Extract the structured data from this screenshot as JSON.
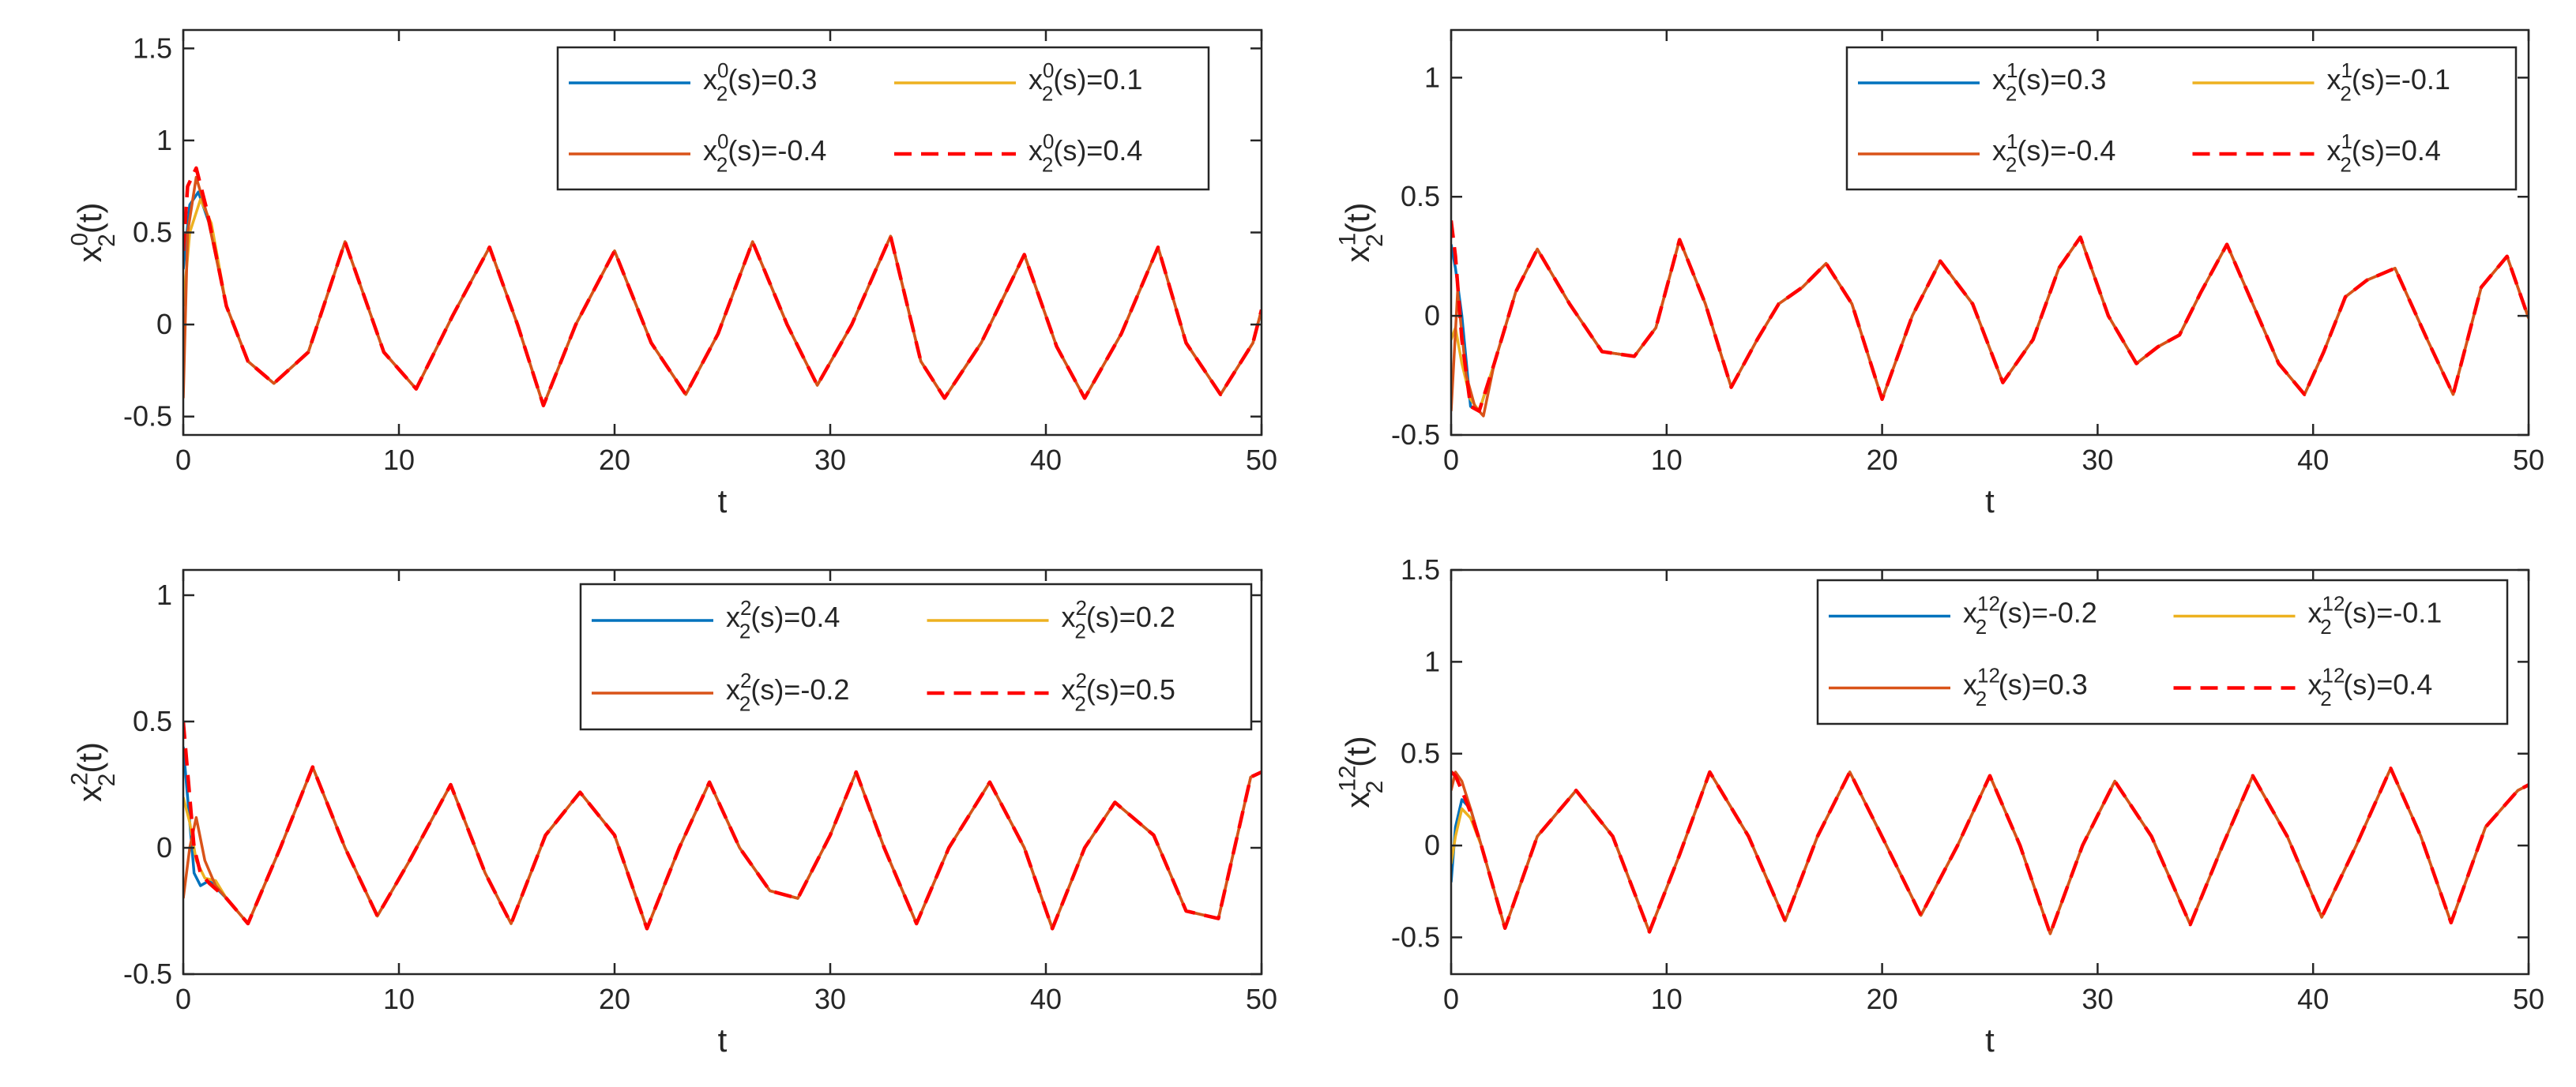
{
  "chart_data": [
    {
      "type": "line",
      "xlabel": "t",
      "ylabel": {
        "base": "x",
        "sub": "2",
        "sup": "0",
        "tail": "(t)"
      },
      "xlim": [
        0,
        50
      ],
      "ylim": [
        -0.6,
        1.6
      ],
      "xticks": [
        {
          "v": 0,
          "label": "0"
        },
        {
          "v": 10,
          "label": "10"
        },
        {
          "v": 20,
          "label": "20"
        },
        {
          "v": 30,
          "label": "30"
        },
        {
          "v": 40,
          "label": "40"
        },
        {
          "v": 50,
          "label": "50"
        }
      ],
      "yticks": [
        {
          "v": -0.5,
          "label": "-0.5"
        },
        {
          "v": 0,
          "label": "0"
        },
        {
          "v": 0.5,
          "label": "0.5"
        },
        {
          "v": 1,
          "label": "1"
        },
        {
          "v": 1.5,
          "label": "1.5"
        }
      ],
      "grid": false,
      "legend_position": "top-right",
      "legend": [
        {
          "base": "x",
          "sub": "2",
          "sup": "0",
          "tail": "(s)=0.3",
          "color": "#0072BD",
          "dash": false
        },
        {
          "base": "x",
          "sub": "2",
          "sup": "0",
          "tail": "(s)=0.1",
          "color": "#EDB120",
          "dash": false
        },
        {
          "base": "x",
          "sub": "2",
          "sup": "0",
          "tail": "(s)=-0.4",
          "color": "#D95319",
          "dash": false
        },
        {
          "base": "x",
          "sub": "2",
          "sup": "0",
          "tail": "(s)=0.4",
          "color": "#FF0000",
          "dash": true
        }
      ],
      "series": [
        {
          "x": [
            0,
            0.3,
            0.7,
            1.2,
            2,
            3
          ],
          "y": [
            0.3,
            0.65,
            0.72,
            0.55,
            0.1,
            -0.2
          ]
        },
        {
          "x": [
            0,
            0.3,
            0.8,
            1.3,
            2,
            3
          ],
          "y": [
            0.1,
            0.5,
            0.68,
            0.55,
            0.1,
            -0.2
          ]
        },
        {
          "x": [
            0,
            0.2,
            0.6,
            1.1,
            2,
            3
          ],
          "y": [
            -0.4,
            0.5,
            0.8,
            0.6,
            0.1,
            -0.2
          ]
        },
        {
          "x": [
            0,
            0.2,
            0.6,
            1.1,
            2,
            3
          ],
          "y": [
            0.4,
            0.75,
            0.85,
            0.62,
            0.1,
            -0.2
          ]
        }
      ],
      "common": {
        "x": [
          3,
          4.2,
          5.8,
          7.5,
          9.3,
          10.8,
          12.5,
          14.2,
          15.5,
          16.7,
          18.2,
          20,
          21.7,
          23.3,
          24.8,
          26.4,
          28,
          29.4,
          31,
          32.8,
          34.2,
          35.3,
          37,
          39,
          40.5,
          41.8,
          43.5,
          45.2,
          46.5,
          48.1,
          49.6,
          50
        ],
        "y": [
          -0.2,
          -0.32,
          -0.15,
          0.45,
          -0.15,
          -0.35,
          0.05,
          0.42,
          0.0,
          -0.44,
          0.0,
          0.4,
          -0.1,
          -0.38,
          -0.05,
          0.45,
          0.0,
          -0.33,
          0.0,
          0.48,
          -0.2,
          -0.4,
          -0.1,
          0.38,
          -0.12,
          -0.4,
          -0.05,
          0.42,
          -0.1,
          -0.38,
          -0.1,
          0.08
        ]
      }
    },
    {
      "type": "line",
      "xlabel": "t",
      "ylabel": {
        "base": "x",
        "sub": "2",
        "sup": "1",
        "tail": "(t)"
      },
      "xlim": [
        0,
        50
      ],
      "ylim": [
        -0.5,
        1.2
      ],
      "xticks": [
        {
          "v": 0,
          "label": "0"
        },
        {
          "v": 10,
          "label": "10"
        },
        {
          "v": 20,
          "label": "20"
        },
        {
          "v": 30,
          "label": "30"
        },
        {
          "v": 40,
          "label": "40"
        },
        {
          "v": 50,
          "label": "50"
        }
      ],
      "yticks": [
        {
          "v": -0.5,
          "label": "-0.5"
        },
        {
          "v": 0,
          "label": "0"
        },
        {
          "v": 0.5,
          "label": "0.5"
        },
        {
          "v": 1,
          "label": "1"
        }
      ],
      "grid": false,
      "legend_position": "top-right",
      "legend": [
        {
          "base": "x",
          "sub": "2",
          "sup": "1",
          "tail": "(s)=0.3",
          "color": "#0072BD",
          "dash": false
        },
        {
          "base": "x",
          "sub": "2",
          "sup": "1",
          "tail": "(s)=-0.1",
          "color": "#EDB120",
          "dash": false
        },
        {
          "base": "x",
          "sub": "2",
          "sup": "1",
          "tail": "(s)=-0.4",
          "color": "#D95319",
          "dash": false
        },
        {
          "base": "x",
          "sub": "2",
          "sup": "1",
          "tail": "(s)=0.4",
          "color": "#FF0000",
          "dash": true
        }
      ],
      "series": [
        {
          "x": [
            0,
            0.2,
            0.5,
            0.9,
            1.3,
            2,
            3
          ],
          "y": [
            0.3,
            0.2,
            0.0,
            -0.38,
            -0.4,
            -0.2,
            0.1
          ]
        },
        {
          "x": [
            0,
            0.2,
            0.5,
            0.9,
            1.3,
            2,
            3
          ],
          "y": [
            -0.1,
            -0.05,
            -0.2,
            -0.35,
            -0.4,
            -0.2,
            0.1
          ]
        },
        {
          "x": [
            0,
            0.3,
            0.7,
            1.1,
            1.5,
            2,
            3
          ],
          "y": [
            -0.4,
            0.1,
            -0.25,
            -0.38,
            -0.42,
            -0.2,
            0.1
          ]
        },
        {
          "x": [
            0,
            0.2,
            0.5,
            0.9,
            1.3,
            2,
            3
          ],
          "y": [
            0.4,
            0.25,
            -0.1,
            -0.38,
            -0.4,
            -0.2,
            0.1
          ]
        }
      ],
      "common": {
        "x": [
          3,
          4,
          5.5,
          7,
          8.5,
          9.5,
          10.6,
          11.8,
          13,
          14.2,
          15.2,
          16.3,
          17.4,
          18.6,
          20,
          21.4,
          22.7,
          24.2,
          25.6,
          27,
          28.2,
          29.2,
          30.5,
          31.8,
          32.8,
          33.8,
          34.8,
          36,
          37.2,
          38.4,
          39.6,
          40.5,
          41.5,
          42.5,
          43.8,
          45.3,
          46.5,
          47.8,
          49,
          50
        ],
        "y": [
          0.1,
          0.28,
          0.05,
          -0.15,
          -0.17,
          -0.05,
          0.32,
          0.05,
          -0.3,
          -0.1,
          0.05,
          0.12,
          0.22,
          0.05,
          -0.35,
          0.0,
          0.23,
          0.05,
          -0.28,
          -0.1,
          0.2,
          0.33,
          0.0,
          -0.2,
          -0.13,
          -0.08,
          0.1,
          0.3,
          0.05,
          -0.2,
          -0.33,
          -0.15,
          0.08,
          0.15,
          0.2,
          -0.1,
          -0.33,
          0.12,
          0.25,
          -0.01
        ]
      }
    },
    {
      "type": "line",
      "xlabel": "t",
      "ylabel": {
        "base": "x",
        "sub": "2",
        "sup": "2",
        "tail": "(t)"
      },
      "xlim": [
        0,
        50
      ],
      "ylim": [
        -0.5,
        1.1
      ],
      "xticks": [
        {
          "v": 0,
          "label": "0"
        },
        {
          "v": 10,
          "label": "10"
        },
        {
          "v": 20,
          "label": "20"
        },
        {
          "v": 30,
          "label": "30"
        },
        {
          "v": 40,
          "label": "40"
        },
        {
          "v": 50,
          "label": "50"
        }
      ],
      "yticks": [
        {
          "v": -0.5,
          "label": "-0.5"
        },
        {
          "v": 0,
          "label": "0"
        },
        {
          "v": 0.5,
          "label": "0.5"
        },
        {
          "v": 1,
          "label": "1"
        }
      ],
      "grid": false,
      "legend_position": "top-right",
      "legend": [
        {
          "base": "x",
          "sub": "2",
          "sup": "2",
          "tail": "(s)=0.4",
          "color": "#0072BD",
          "dash": false
        },
        {
          "base": "x",
          "sub": "2",
          "sup": "2",
          "tail": "(s)=0.2",
          "color": "#EDB120",
          "dash": false
        },
        {
          "base": "x",
          "sub": "2",
          "sup": "2",
          "tail": "(s)=-0.2",
          "color": "#D95319",
          "dash": false
        },
        {
          "base": "x",
          "sub": "2",
          "sup": "2",
          "tail": "(s)=0.5",
          "color": "#FF0000",
          "dash": true
        }
      ],
      "series": [
        {
          "x": [
            0,
            0.2,
            0.5,
            0.8,
            1.2,
            2,
            3
          ],
          "y": [
            0.4,
            0.2,
            -0.1,
            -0.15,
            -0.13,
            -0.2,
            -0.3
          ]
        },
        {
          "x": [
            0,
            0.3,
            0.6,
            1,
            1.5,
            2,
            3
          ],
          "y": [
            0.2,
            0.1,
            -0.05,
            -0.12,
            -0.13,
            -0.2,
            -0.3
          ]
        },
        {
          "x": [
            0,
            0.3,
            0.6,
            1,
            1.5,
            2,
            3
          ],
          "y": [
            -0.2,
            0.0,
            0.12,
            -0.05,
            -0.15,
            -0.2,
            -0.3
          ]
        },
        {
          "x": [
            0,
            0.2,
            0.5,
            0.8,
            1.2,
            2,
            3
          ],
          "y": [
            0.5,
            0.3,
            0.0,
            -0.1,
            -0.14,
            -0.2,
            -0.3
          ]
        }
      ],
      "common": {
        "x": [
          3,
          4.5,
          6,
          7.5,
          9,
          10.5,
          12.4,
          14,
          15.2,
          16.8,
          18.4,
          20,
          21.5,
          23,
          24.4,
          25.8,
          27.2,
          28.5,
          30,
          31.2,
          32.5,
          34,
          35.5,
          37.4,
          39,
          40.3,
          41.8,
          43.2,
          45,
          46.5,
          48,
          49.5,
          50
        ],
        "y": [
          -0.3,
          0.0,
          0.32,
          0.0,
          -0.27,
          -0.05,
          0.25,
          -0.1,
          -0.3,
          0.05,
          0.22,
          0.05,
          -0.32,
          0.0,
          0.26,
          0.0,
          -0.17,
          -0.2,
          0.05,
          0.3,
          0.0,
          -0.3,
          0.0,
          0.26,
          0.0,
          -0.32,
          0.0,
          0.18,
          0.05,
          -0.25,
          -0.28,
          0.28,
          0.3
        ]
      }
    },
    {
      "type": "line",
      "xlabel": "t",
      "ylabel": {
        "base": "x",
        "sub": "2",
        "sup": "12",
        "tail": "(t)"
      },
      "xlim": [
        0,
        50
      ],
      "ylim": [
        -0.7,
        1.5
      ],
      "xticks": [
        {
          "v": 0,
          "label": "0"
        },
        {
          "v": 10,
          "label": "10"
        },
        {
          "v": 20,
          "label": "20"
        },
        {
          "v": 30,
          "label": "30"
        },
        {
          "v": 40,
          "label": "40"
        },
        {
          "v": 50,
          "label": "50"
        }
      ],
      "yticks": [
        {
          "v": -0.5,
          "label": "-0.5"
        },
        {
          "v": 0,
          "label": "0"
        },
        {
          "v": 0.5,
          "label": "0.5"
        },
        {
          "v": 1,
          "label": "1"
        },
        {
          "v": 1.5,
          "label": "1.5"
        }
      ],
      "grid": false,
      "legend_position": "top-right",
      "legend": [
        {
          "base": "x",
          "sub": "2",
          "sup": "12",
          "tail": "(s)=-0.2",
          "color": "#0072BD",
          "dash": false
        },
        {
          "base": "x",
          "sub": "2",
          "sup": "12",
          "tail": "(s)=-0.1",
          "color": "#EDB120",
          "dash": false
        },
        {
          "base": "x",
          "sub": "2",
          "sup": "12",
          "tail": "(s)=0.3",
          "color": "#D95319",
          "dash": false
        },
        {
          "base": "x",
          "sub": "2",
          "sup": "12",
          "tail": "(s)=0.4",
          "color": "#FF0000",
          "dash": true
        }
      ],
      "series": [
        {
          "x": [
            0,
            0.2,
            0.5,
            0.9,
            1.4,
            2.5
          ],
          "y": [
            -0.2,
            0.1,
            0.25,
            0.2,
            0.0,
            -0.45
          ]
        },
        {
          "x": [
            0,
            0.2,
            0.5,
            0.9,
            1.4,
            2.5
          ],
          "y": [
            -0.1,
            0.05,
            0.2,
            0.15,
            0.0,
            -0.45
          ]
        },
        {
          "x": [
            0,
            0.2,
            0.5,
            0.9,
            1.4,
            2.5
          ],
          "y": [
            0.3,
            0.4,
            0.35,
            0.2,
            0.0,
            -0.45
          ]
        },
        {
          "x": [
            0,
            0.2,
            0.5,
            0.9,
            1.4,
            2.5
          ],
          "y": [
            0.4,
            0.38,
            0.3,
            0.18,
            0.0,
            -0.45
          ]
        }
      ],
      "common": {
        "x": [
          2.5,
          4,
          5.8,
          7.5,
          9.2,
          10.6,
          12,
          13.8,
          15.5,
          17,
          18.5,
          20.2,
          21.8,
          23.5,
          25,
          26.4,
          27.8,
          29.3,
          30.8,
          32.5,
          34.3,
          35.8,
          37.2,
          38.8,
          40.4,
          42,
          43.6,
          45,
          46.4,
          48,
          49.5,
          50
        ],
        "y": [
          -0.45,
          0.05,
          0.3,
          0.05,
          -0.47,
          -0.05,
          0.4,
          0.05,
          -0.41,
          0.05,
          0.4,
          0.0,
          -0.38,
          0.0,
          0.38,
          0.0,
          -0.48,
          0.0,
          0.35,
          0.05,
          -0.43,
          0.0,
          0.38,
          0.05,
          -0.39,
          0.0,
          0.42,
          0.05,
          -0.42,
          0.1,
          0.3,
          0.33
        ]
      }
    }
  ]
}
